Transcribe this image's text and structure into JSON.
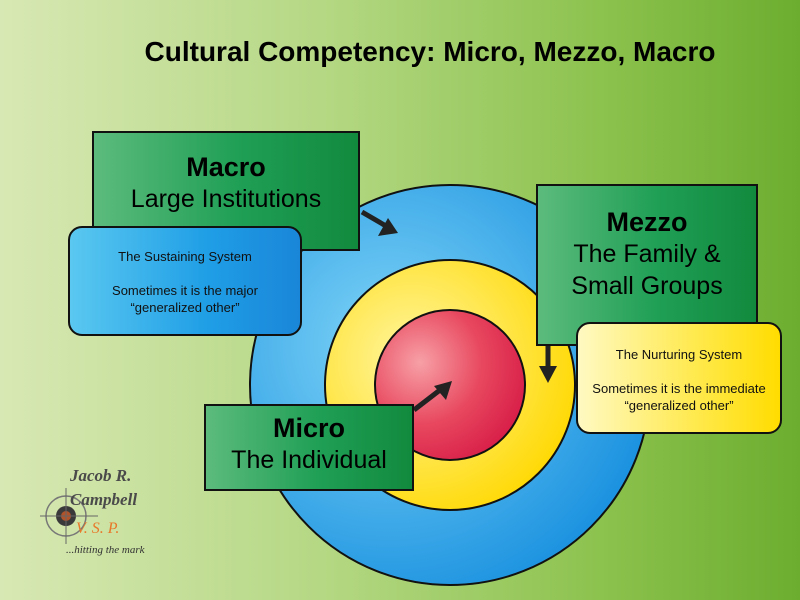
{
  "title": "Cultural Competency:  Micro, Mezzo, Macro",
  "macro": {
    "heading": "Macro",
    "subtitle": "Large Institutions"
  },
  "mezzo": {
    "heading": "Mezzo",
    "subtitle_line1": "The Family &",
    "subtitle_line2": "Small Groups"
  },
  "micro": {
    "heading": "Micro",
    "subtitle": "The Individual"
  },
  "sustaining": {
    "line1": "The Sustaining System",
    "line2": "Sometimes it is the major",
    "line3": "“generalized other”"
  },
  "nurturing": {
    "line1": "The Nurturing System",
    "line2": "Sometimes  it is the immediate",
    "line3": "“generalized other”"
  },
  "logo": {
    "name_line1": "Jacob R.",
    "name_line2": "Campbell",
    "initials": "V. S. P.",
    "tagline": "...hitting the mark"
  },
  "colors": {
    "outer_ring": "#1fa3e8",
    "middle_ring": "#ffe100",
    "inner_ring": "#e0264a",
    "box_green": "#1f9f55"
  }
}
